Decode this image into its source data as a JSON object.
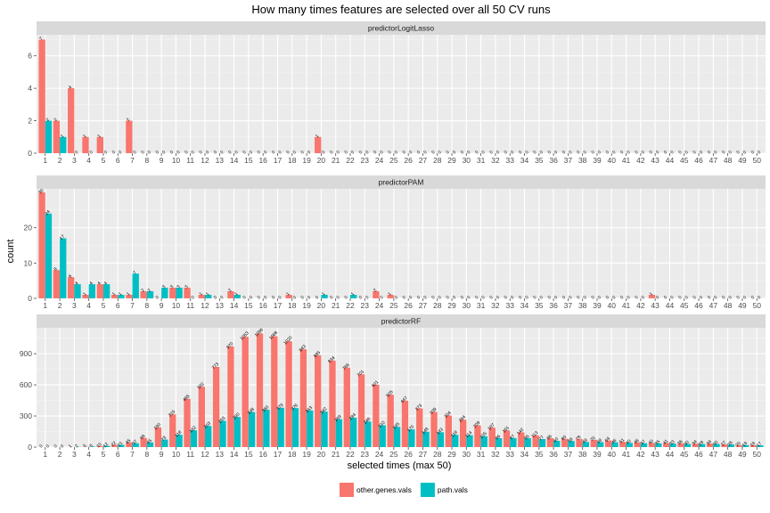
{
  "chart_data": {
    "type": "bar",
    "title": "How many times features are selected over all 50 CV runs",
    "xlabel": "selected times (max 50)",
    "ylabel": "count",
    "categories": [
      "1",
      "2",
      "3",
      "4",
      "5",
      "6",
      "7",
      "8",
      "9",
      "10",
      "11",
      "12",
      "13",
      "14",
      "15",
      "16",
      "17",
      "18",
      "19",
      "20",
      "21",
      "22",
      "23",
      "24",
      "25",
      "26",
      "27",
      "28",
      "29",
      "30",
      "31",
      "32",
      "33",
      "34",
      "35",
      "36",
      "37",
      "38",
      "39",
      "40",
      "41",
      "42",
      "43",
      "44",
      "45",
      "46",
      "47",
      "48",
      "49",
      "50"
    ],
    "legend": {
      "position": "bottom",
      "items": [
        {
          "name": "other.genes.vals",
          "color": "#F8766D"
        },
        {
          "name": "path.vals",
          "color": "#00BFC4"
        }
      ]
    },
    "grid": true,
    "panels": [
      {
        "name": "predictorLogitLasso",
        "ylim": [
          0,
          7.3
        ],
        "yticks": [
          0,
          2,
          4,
          6
        ],
        "series": [
          {
            "name": "other.genes.vals",
            "color": "#F8766D",
            "values": [
              7,
              2,
              4,
              1,
              1,
              0,
              2,
              0,
              0,
              0,
              0,
              0,
              0,
              0,
              0,
              0,
              0,
              0,
              0,
              1,
              0,
              0,
              0,
              0,
              0,
              0,
              0,
              0,
              0,
              0,
              0,
              0,
              0,
              0,
              0,
              0,
              0,
              0,
              0,
              0,
              0,
              0,
              0,
              0,
              0,
              0,
              0,
              0,
              0,
              0
            ]
          },
          {
            "name": "path.vals",
            "color": "#00BFC4",
            "values": [
              2,
              1,
              0,
              0,
              0,
              0,
              0,
              0,
              0,
              0,
              0,
              0,
              0,
              0,
              0,
              0,
              0,
              0,
              0,
              0,
              0,
              0,
              0,
              0,
              0,
              0,
              0,
              0,
              0,
              0,
              0,
              0,
              0,
              0,
              0,
              0,
              0,
              0,
              0,
              0,
              0,
              0,
              0,
              0,
              0,
              0,
              0,
              0,
              0,
              0
            ]
          }
        ]
      },
      {
        "name": "predictorPAM",
        "ylim": [
          0,
          31
        ],
        "yticks": [
          0,
          10,
          20
        ],
        "series": [
          {
            "name": "other.genes.vals",
            "color": "#F8766D",
            "values": [
              30,
              8,
              6,
              1,
              4,
              1,
              1,
              2,
              0,
              3,
              3,
              1,
              0,
              2,
              0,
              0,
              0,
              1,
              0,
              0,
              0,
              0,
              0,
              2,
              1,
              0,
              0,
              0,
              0,
              0,
              0,
              0,
              0,
              0,
              0,
              0,
              0,
              0,
              0,
              0,
              0,
              0,
              1,
              0,
              0,
              0,
              0,
              0,
              0,
              0
            ]
          },
          {
            "name": "path.vals",
            "color": "#00BFC4",
            "values": [
              24,
              17,
              4,
              4,
              4,
              1,
              7,
              2,
              3,
              3,
              0,
              1,
              0,
              1,
              0,
              0,
              0,
              0,
              0,
              1,
              0,
              1,
              0,
              0,
              0,
              0,
              0,
              0,
              0,
              0,
              0,
              0,
              0,
              0,
              0,
              0,
              0,
              0,
              0,
              0,
              0,
              0,
              0,
              0,
              0,
              0,
              0,
              0,
              0,
              0
            ]
          }
        ]
      },
      {
        "name": "predictorRF",
        "ylim": [
          0,
          1150
        ],
        "yticks": [
          0,
          300,
          600,
          900
        ],
        "series": [
          {
            "name": "other.genes.vals",
            "color": "#F8766D",
            "values": [
              0,
              0,
              1,
              3,
              10,
              22,
              45,
              88,
              190,
              315,
              465,
              582,
              773,
              970,
              1063,
              1096,
              1068,
              1020,
              943,
              885,
              834,
              766,
              701,
              601,
              505,
              447,
              373,
              339,
              304,
              264,
              209,
              187,
              161,
              142,
              113,
              86,
              80,
              78,
              70,
              64,
              51,
              46,
              40,
              41,
              36,
              34,
              34,
              27,
              20,
              19
            ]
          },
          {
            "name": "path.vals",
            "color": "#00BFC4",
            "values": [
              0,
              0,
              2,
              5,
              12,
              21,
              37,
              45,
              73,
              118,
              162,
              203,
              253,
              290,
              338,
              360,
              379,
              376,
              353,
              342,
              269,
              284,
              246,
              210,
              195,
              170,
              148,
              143,
              118,
              114,
              105,
              86,
              87,
              85,
              77,
              60,
              59,
              49,
              48,
              46,
              40,
              37,
              35,
              33,
              30,
              29,
              30,
              26,
              19,
              17
            ]
          }
        ]
      }
    ]
  }
}
